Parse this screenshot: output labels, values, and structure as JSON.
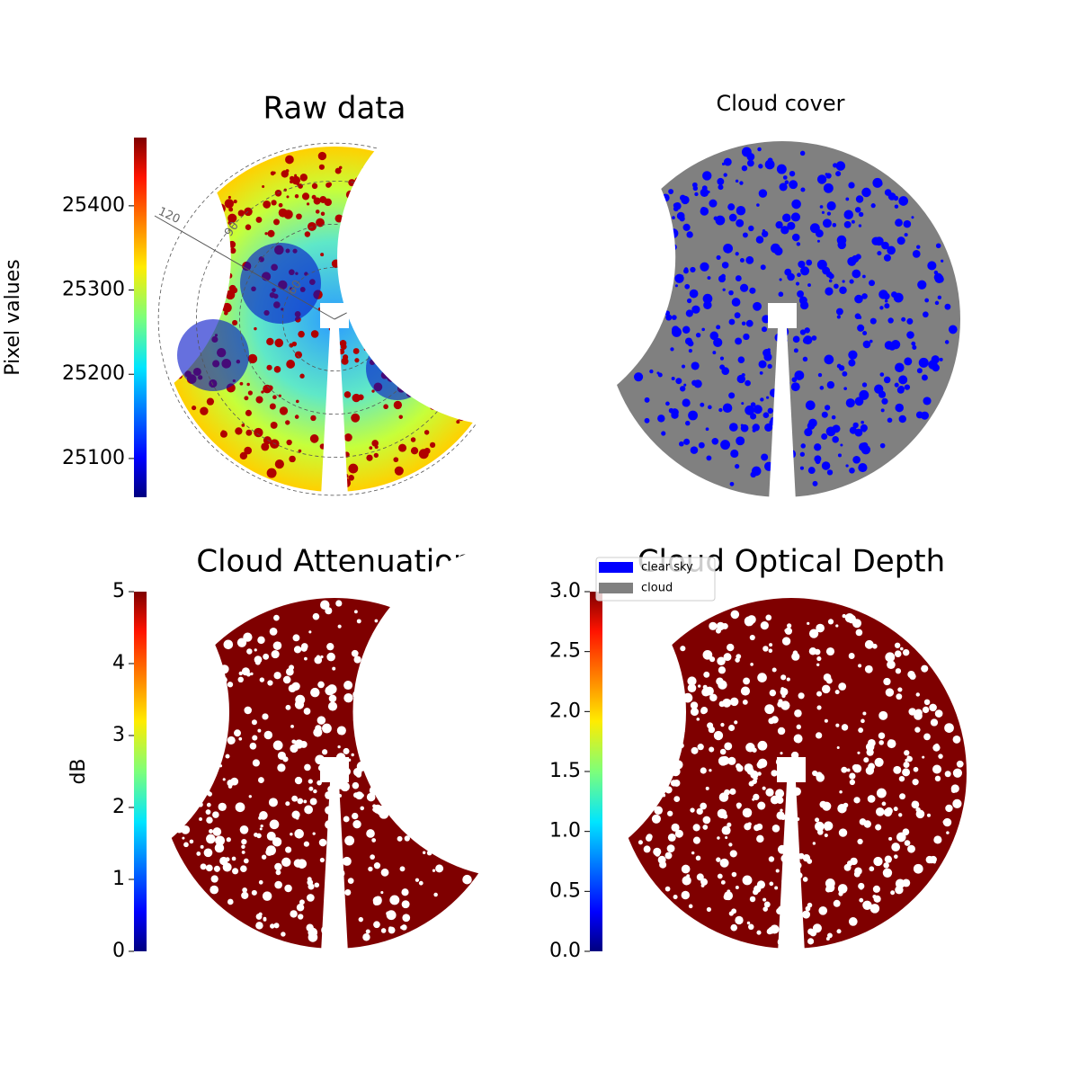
{
  "chart_data": [
    {
      "type": "image",
      "title": "Raw data",
      "colorbar": {
        "label": "Pixel values",
        "lim": [
          25054,
          25481
        ],
        "ticks": [
          25100,
          25200,
          25300,
          25400
        ],
        "colormap": "jet"
      },
      "annotations": [
        "120",
        "90",
        "60"
      ]
    },
    {
      "type": "image",
      "title": "Cloud cover",
      "series": [
        {
          "name": "clear sky",
          "color": "#0000ff"
        },
        {
          "name": "cloud",
          "color": "#808080"
        }
      ]
    },
    {
      "type": "image",
      "title": "Cloud Attenuation",
      "colorbar": {
        "label": "dB",
        "lim": [
          0,
          5
        ],
        "ticks": [
          0,
          1,
          2,
          3,
          4,
          5
        ],
        "colormap": "jet"
      }
    },
    {
      "type": "image",
      "title": "Cloud Optical Depth",
      "colorbar": {
        "lim": [
          0,
          3
        ],
        "ticks": [
          {
            "value": 0,
            "label": "0.0"
          },
          {
            "value": 0.5,
            "label": "0.5"
          },
          {
            "value": 1,
            "label": "1.0"
          },
          {
            "value": 1.5,
            "label": "1.5"
          },
          {
            "value": 2,
            "label": "2.0"
          },
          {
            "value": 2.5,
            "label": "2.5"
          },
          {
            "value": 3,
            "label": "3.0"
          }
        ],
        "colormap": "jet"
      }
    }
  ]
}
